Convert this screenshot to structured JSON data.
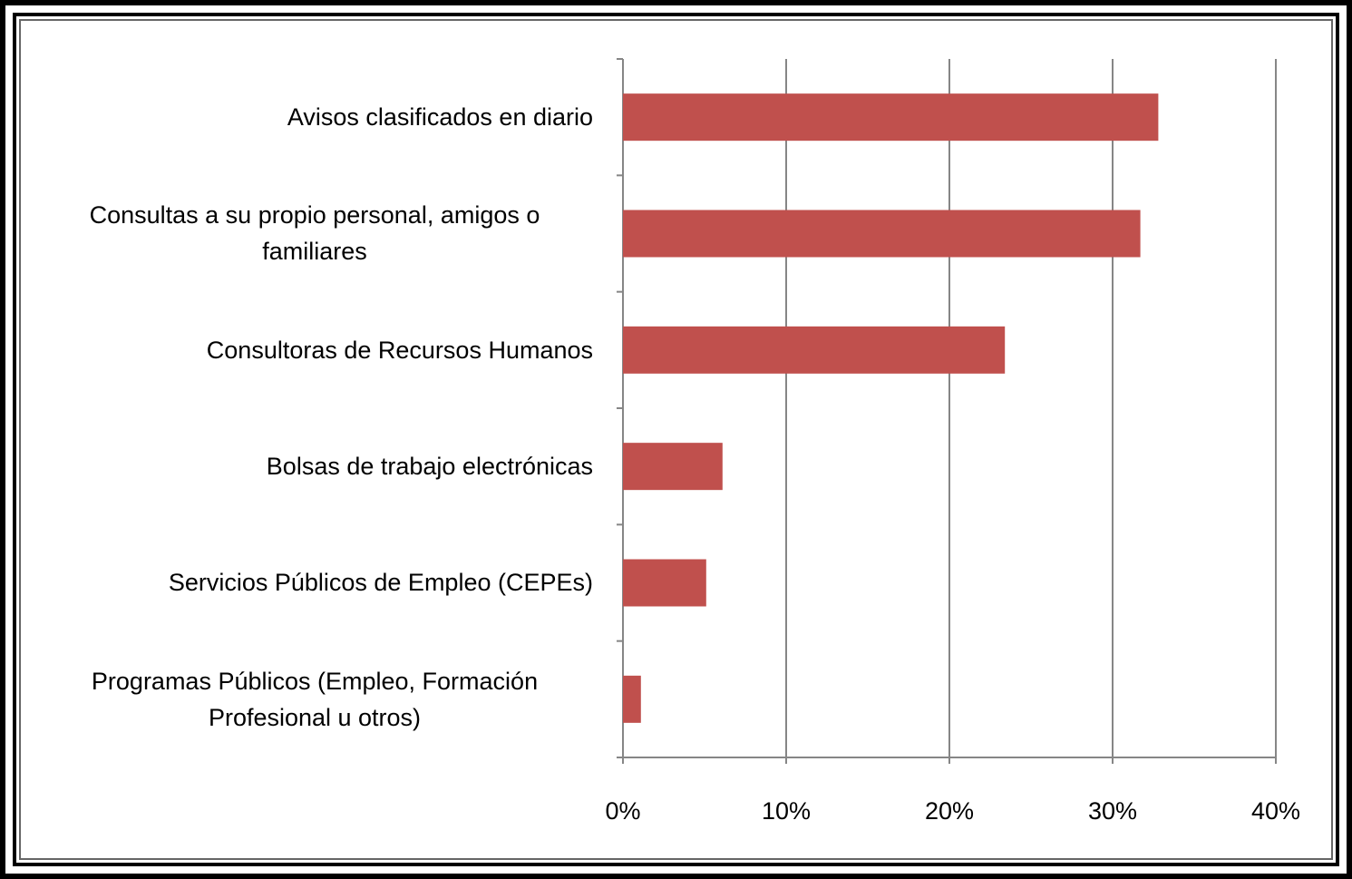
{
  "chart_data": {
    "type": "bar",
    "orientation": "horizontal",
    "categories": [
      "Avisos clasificados en diario",
      "Consultas a su propio personal, amigos o familiares",
      "Consultoras de Recursos Humanos",
      "Bolsas de trabajo electrónicas",
      "Servicios Públicos de Empleo (CEPEs)",
      "Programas Públicos (Empleo, Formación Profesional u otros)"
    ],
    "values": [
      32.8,
      31.7,
      23.4,
      6.1,
      5.1,
      1.1
    ],
    "color": "#c0504d",
    "xlim": [
      0,
      40
    ],
    "xticks": [
      {
        "value": 0,
        "label": "0%"
      },
      {
        "value": 10,
        "label": "10%"
      },
      {
        "value": 20,
        "label": "20%"
      },
      {
        "value": 30,
        "label": "30%"
      },
      {
        "value": 40,
        "label": "40%"
      }
    ],
    "grid": true
  }
}
